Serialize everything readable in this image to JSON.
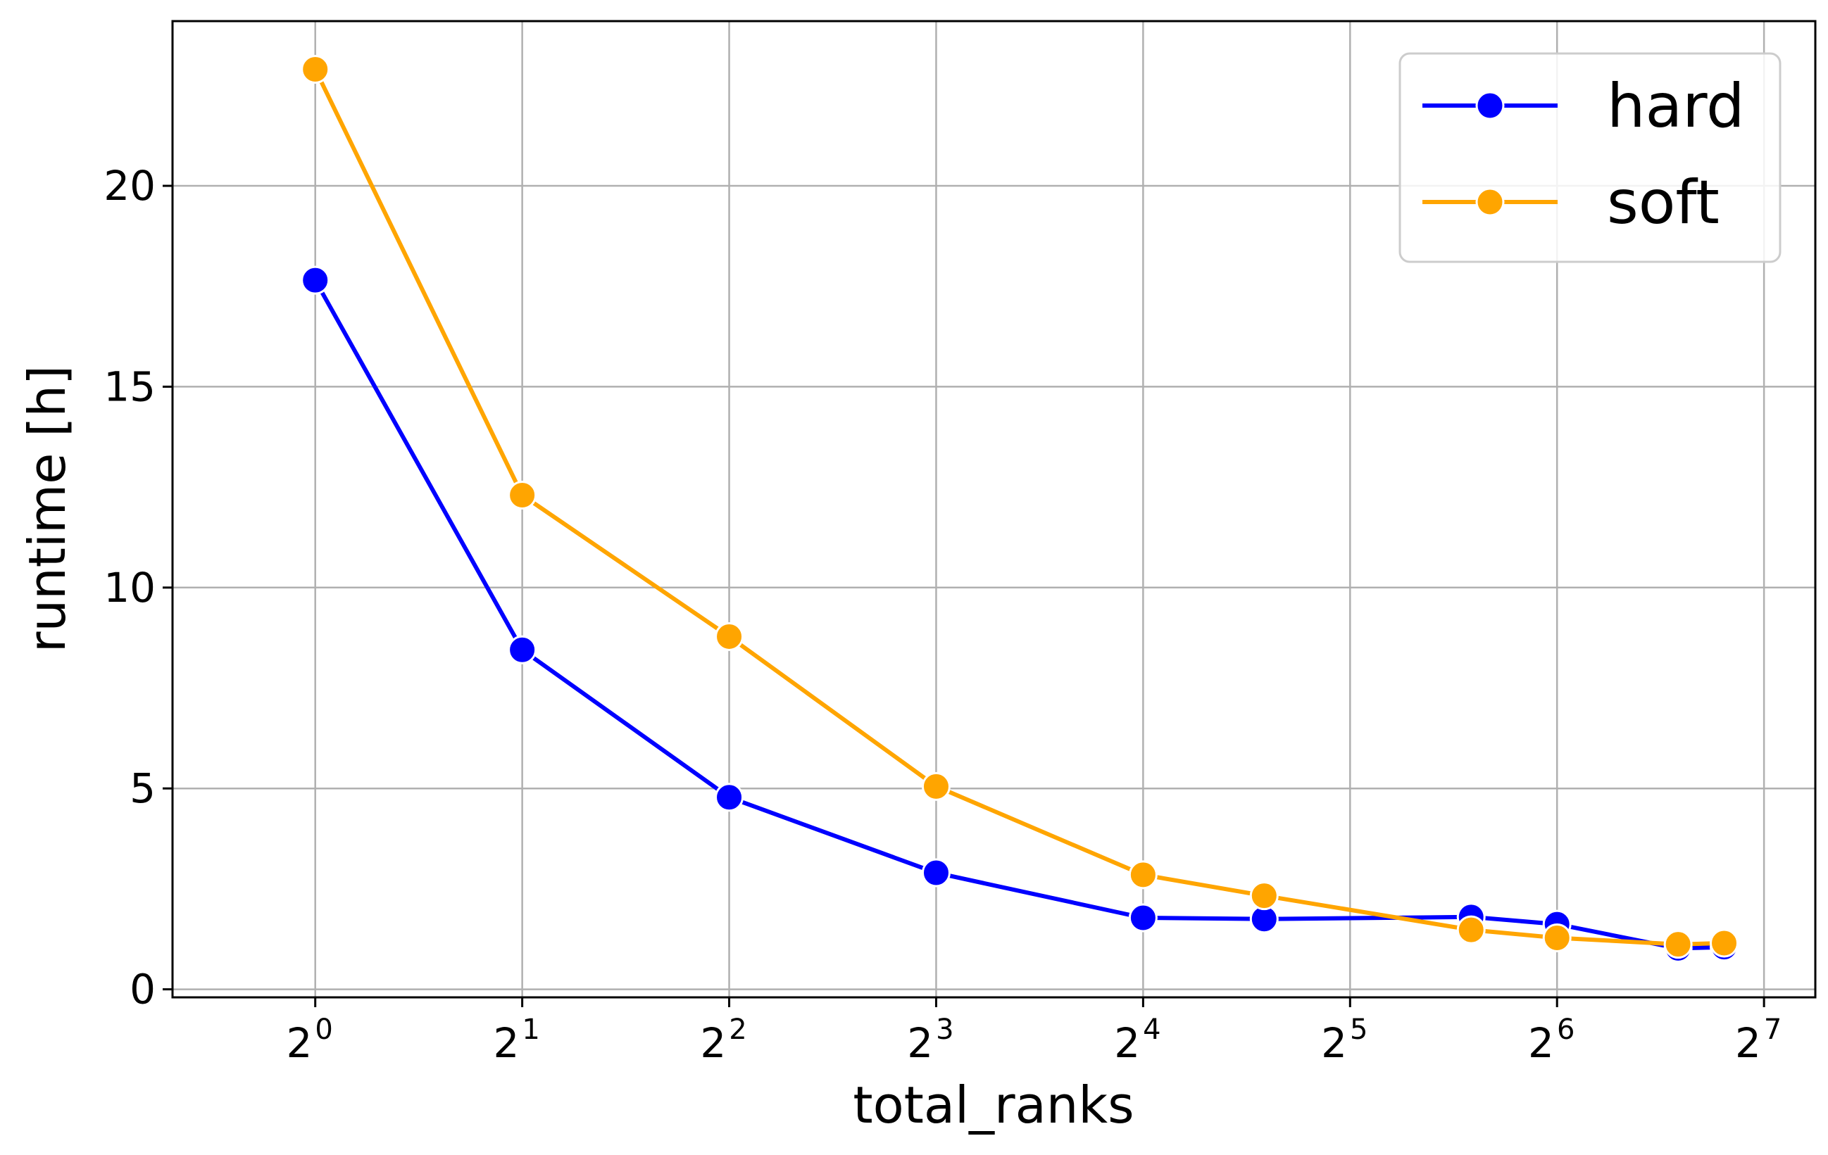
{
  "chart_data": {
    "type": "line",
    "title": "",
    "xlabel": "total_ranks",
    "ylabel": "runtime [h]",
    "x_scale": "log2",
    "xlim": [
      0.62,
      152
    ],
    "ylim": [
      -0.2,
      24.1
    ],
    "grid": true,
    "legend_position": "top-right",
    "x_ticks": [
      {
        "value": 1,
        "base": "2",
        "exp": "0"
      },
      {
        "value": 2,
        "base": "2",
        "exp": "1"
      },
      {
        "value": 4,
        "base": "2",
        "exp": "2"
      },
      {
        "value": 8,
        "base": "2",
        "exp": "3"
      },
      {
        "value": 16,
        "base": "2",
        "exp": "4"
      },
      {
        "value": 32,
        "base": "2",
        "exp": "5"
      },
      {
        "value": 64,
        "base": "2",
        "exp": "6"
      },
      {
        "value": 128,
        "base": "2",
        "exp": "7"
      }
    ],
    "y_ticks": [
      {
        "value": 0,
        "label": "0"
      },
      {
        "value": 5,
        "label": "5"
      },
      {
        "value": 10,
        "label": "10"
      },
      {
        "value": 15,
        "label": "15"
      },
      {
        "value": 20,
        "label": "20"
      }
    ],
    "series": [
      {
        "name": "hard",
        "color": "#0000ff",
        "x": [
          1,
          2,
          4,
          8,
          16,
          24,
          48,
          64,
          96,
          112
        ],
        "y": [
          17.65,
          8.45,
          4.78,
          2.9,
          1.78,
          1.75,
          1.8,
          1.62,
          1.02,
          1.05
        ]
      },
      {
        "name": "soft",
        "color": "#ffa500",
        "x": [
          1,
          2,
          4,
          8,
          16,
          24,
          48,
          64,
          96,
          112
        ],
        "y": [
          22.9,
          12.3,
          8.78,
          5.05,
          2.85,
          2.33,
          1.48,
          1.28,
          1.12,
          1.15
        ]
      }
    ]
  }
}
